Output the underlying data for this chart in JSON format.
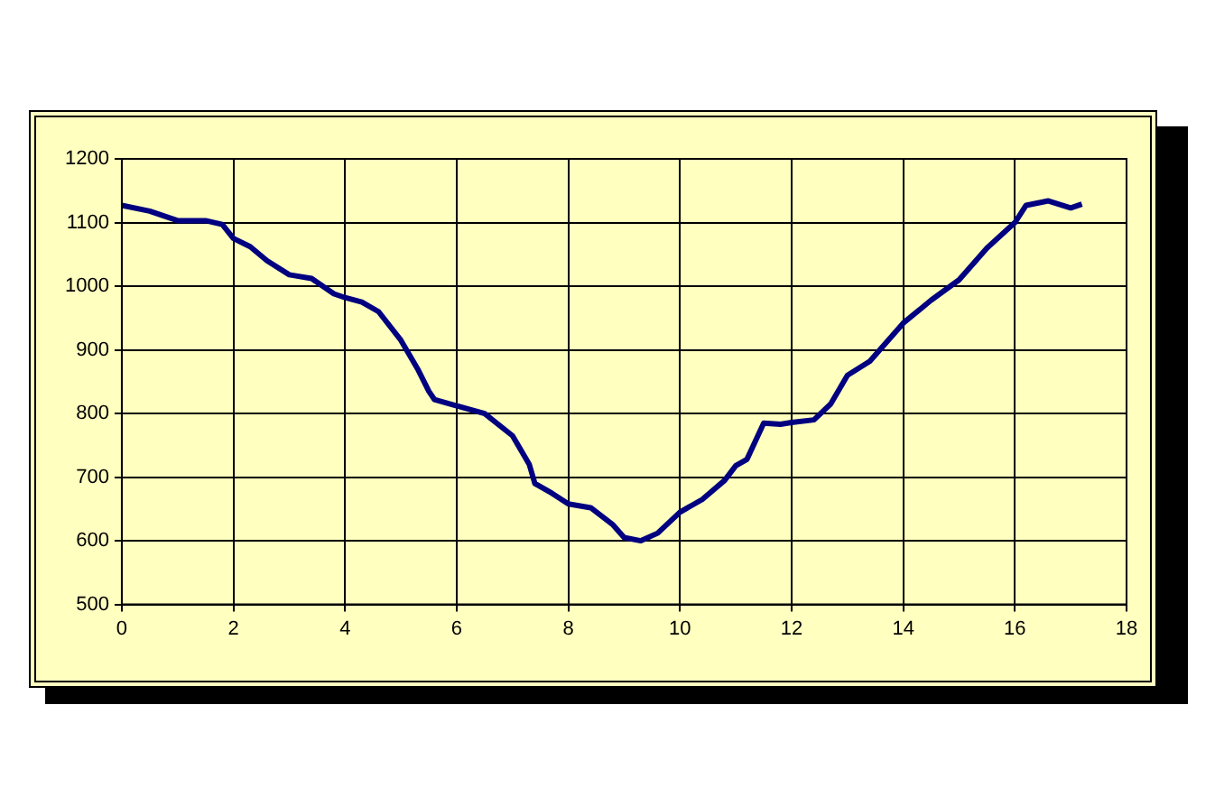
{
  "chart_data": {
    "type": "line",
    "x": [
      0,
      0.5,
      1,
      1.5,
      1.8,
      2,
      2.3,
      2.6,
      3,
      3.4,
      3.8,
      4,
      4.3,
      4.6,
      5,
      5.3,
      5.5,
      5.6,
      6,
      6.5,
      7,
      7.3,
      7.4,
      7.7,
      8,
      8.4,
      8.8,
      9,
      9.3,
      9.6,
      10,
      10.4,
      10.8,
      11,
      11.2,
      11.5,
      11.8,
      12,
      12.4,
      12.7,
      13,
      13.4,
      14,
      14.5,
      15,
      15.5,
      16,
      16.2,
      16.6,
      17,
      17.2
    ],
    "series": [
      {
        "color": "#000080",
        "values": [
          1127,
          1118,
          1103,
          1103,
          1097,
          1075,
          1062,
          1040,
          1018,
          1012,
          988,
          982,
          975,
          960,
          915,
          870,
          835,
          822,
          812,
          800,
          765,
          720,
          690,
          675,
          658,
          652,
          625,
          605,
          600,
          612,
          645,
          665,
          695,
          718,
          728,
          785,
          783,
          786,
          790,
          815,
          860,
          882,
          942,
          978,
          1010,
          1060,
          1100,
          1127,
          1134,
          1123,
          1129
        ]
      }
    ],
    "xlim": [
      0,
      18
    ],
    "xticks": [
      0,
      2,
      4,
      6,
      8,
      10,
      12,
      14,
      16,
      18
    ],
    "ylim": [
      500,
      1200
    ],
    "yticks": [
      500,
      600,
      700,
      800,
      900,
      1000,
      1100,
      1200
    ],
    "grid": true,
    "legend": false,
    "marker": "none",
    "line_style": "solid"
  }
}
